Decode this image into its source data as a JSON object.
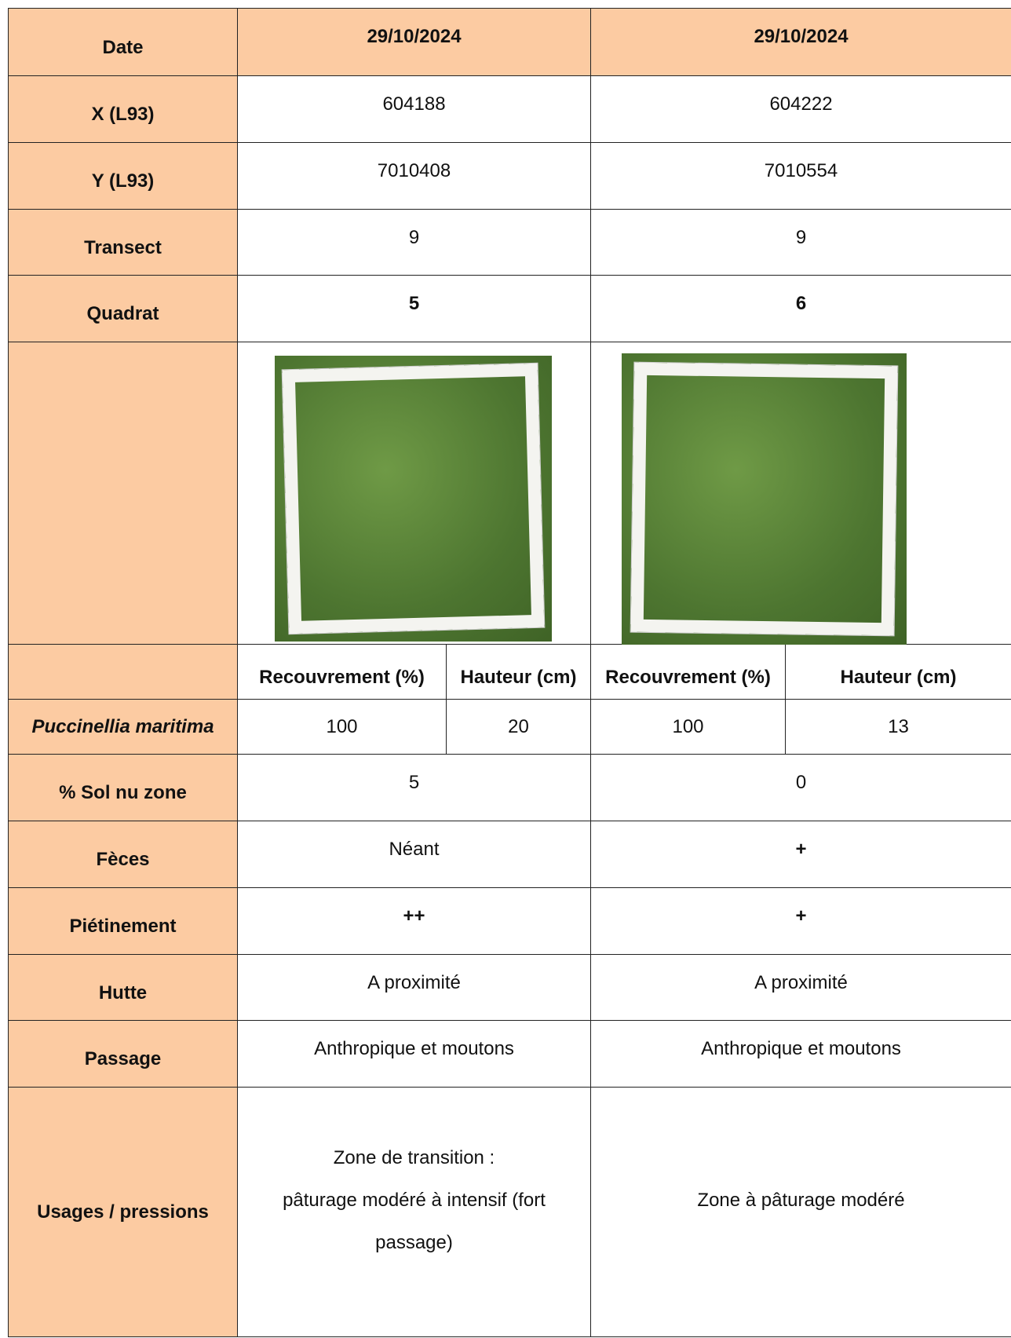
{
  "table": {
    "header": {
      "label": "Date",
      "cells": [
        "29/10/2024",
        "29/10/2024"
      ]
    },
    "rows": [
      {
        "label": "X (L93)",
        "cells": [
          "604188",
          "604222"
        ]
      },
      {
        "label": "Y (L93)",
        "cells": [
          "7010408",
          "7010554"
        ]
      },
      {
        "label": "Transect",
        "cells": [
          "9",
          "9"
        ]
      },
      {
        "label": "Quadrat",
        "cells": [
          "5",
          "6"
        ]
      }
    ],
    "subheader": {
      "cells": [
        "Recouvrement (%)",
        "Hauteur (cm)",
        "Recouvrement (%)",
        "Hauteur (cm)"
      ]
    },
    "species": {
      "label": "Puccinellia maritima",
      "cells": [
        "100",
        "20",
        "100",
        "13"
      ]
    },
    "rows2": [
      {
        "label": "% Sol nu zone",
        "cells": [
          "5",
          "0"
        ]
      },
      {
        "label": "Fèces",
        "cells": [
          "Néant",
          "+"
        ]
      },
      {
        "label": "Piétinement",
        "cells": [
          "++",
          "+"
        ]
      },
      {
        "label": "Hutte",
        "cells": [
          "A proximité",
          "A proximité"
        ]
      },
      {
        "label": "Passage",
        "cells": [
          "Anthropique et moutons",
          "Anthropique et moutons"
        ]
      }
    ],
    "usages": {
      "label": "Usages / pressions",
      "lines_a": [
        "Zone de transition :",
        "pâturage modéré à intensif (fort",
        "passage)"
      ],
      "cell_b": "Zone à pâturage modéré"
    }
  }
}
